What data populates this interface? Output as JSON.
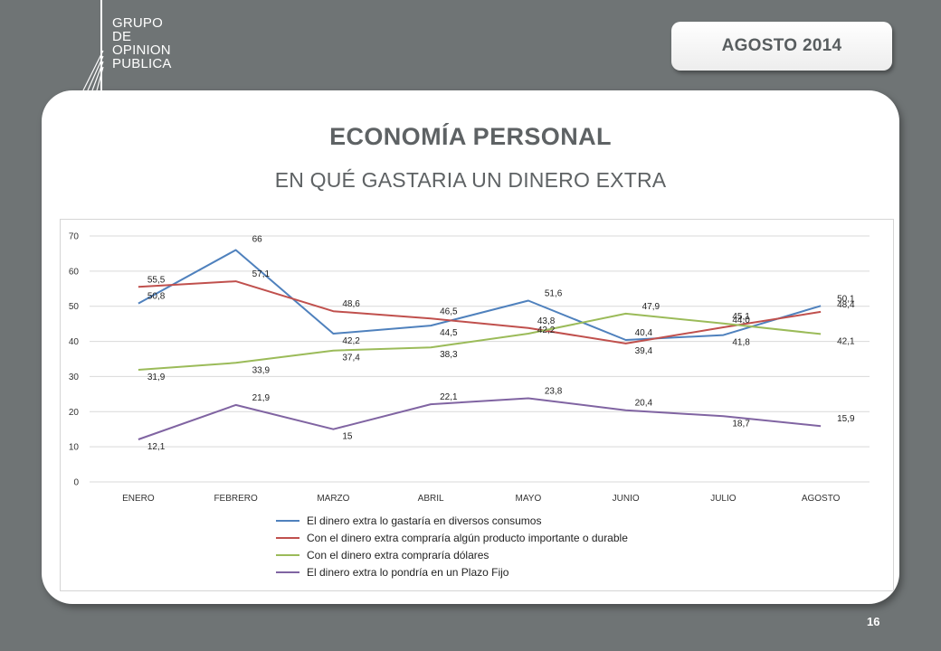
{
  "header": {
    "logo_lines": [
      "GRUPO",
      "DE",
      "OPINION",
      "PUBLICA"
    ],
    "date": "AGOSTO  2014"
  },
  "slide": {
    "title": "ECONOMÍA PERSONAL",
    "subtitle": "EN QUÉ GASTARIA UN DINERO EXTRA",
    "page_number": "16"
  },
  "chart_data": {
    "type": "line",
    "title": "",
    "xlabel": "",
    "ylabel": "",
    "ylim": [
      0,
      70
    ],
    "yticks": [
      "0",
      "10",
      "20",
      "30",
      "40",
      "50",
      "60",
      "70"
    ],
    "grid": true,
    "legend_position": "bottom",
    "categories": [
      "ENERO",
      "FEBRERO",
      "MARZO",
      "ABRIL",
      "MAYO",
      "JUNIO",
      "JULIO",
      "AGOSTO"
    ],
    "series": [
      {
        "name": "El dinero extra lo gastaría en diversos consumos",
        "color": "#4f81bd",
        "values": [
          50.8,
          66,
          42.2,
          44.5,
          51.6,
          40.4,
          41.8,
          50.1
        ],
        "labels": [
          "50,8",
          "66",
          "42,2",
          "44,5",
          "51,6",
          "40,4",
          "41,8",
          "50,1"
        ]
      },
      {
        "name": "Con el dinero extra compraría algún producto importante o durable",
        "color": "#c0504d",
        "values": [
          55.5,
          57.1,
          48.6,
          46.5,
          43.8,
          39.4,
          44.0,
          48.4
        ],
        "labels": [
          "55,5",
          "57,1",
          "48,6",
          "46,5",
          "43,8",
          "39,4",
          "44,0",
          "48,4"
        ]
      },
      {
        "name": "Con el dinero extra compraría dólares",
        "color": "#9bbb59",
        "values": [
          31.9,
          33.9,
          37.4,
          38.3,
          42.2,
          47.9,
          45.1,
          42.1
        ],
        "labels": [
          "31,9",
          "33,9",
          "37,4",
          "38,3",
          "42,2",
          "47,9",
          "45,1",
          "42,1"
        ]
      },
      {
        "name": "El dinero extra lo pondría en un Plazo Fijo",
        "color": "#8064a2",
        "values": [
          12.1,
          21.9,
          15,
          22.1,
          23.8,
          20.4,
          18.7,
          15.9
        ],
        "labels": [
          "12,1",
          "21,9",
          "15",
          "22,1",
          "23,8",
          "20,4",
          "18,7",
          "15,9"
        ]
      }
    ]
  }
}
